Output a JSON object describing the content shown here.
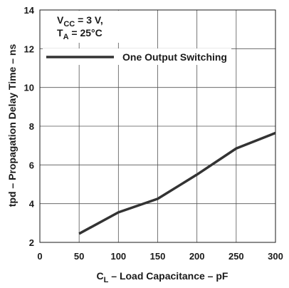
{
  "chart_data": {
    "type": "line",
    "xlabel": "CL – Load Capacitance – pF",
    "ylabel": "tpd – Propagation Delay Time – ns",
    "xlim": [
      0,
      300
    ],
    "ylim": [
      2,
      14
    ],
    "xticks": [
      0,
      50,
      100,
      150,
      200,
      250,
      300
    ],
    "yticks": [
      2,
      4,
      6,
      8,
      10,
      12,
      14
    ],
    "grid": true,
    "conditions": [
      "VCC = 3 V,",
      "TA = 25°C"
    ],
    "legend_position": "upper-left",
    "series": [
      {
        "name": "One Output Switching",
        "color": "#333333",
        "x": [
          50,
          100,
          150,
          200,
          250,
          300
        ],
        "y": [
          2.45,
          3.55,
          4.25,
          5.5,
          6.85,
          7.65
        ]
      }
    ]
  },
  "labels": {
    "cond1_main": "V",
    "cond1_sub": "CC",
    "cond1_rest": " = 3 V,",
    "cond2_main": "T",
    "cond2_sub": "A",
    "cond2_rest": " = 25°C",
    "xlabel_main": "C",
    "xlabel_sub": "L",
    "xlabel_rest": " – Load Capacitance – pF",
    "ylabel": "tpd – Propagation Delay Time – ns",
    "legend": "One Output Switching"
  }
}
